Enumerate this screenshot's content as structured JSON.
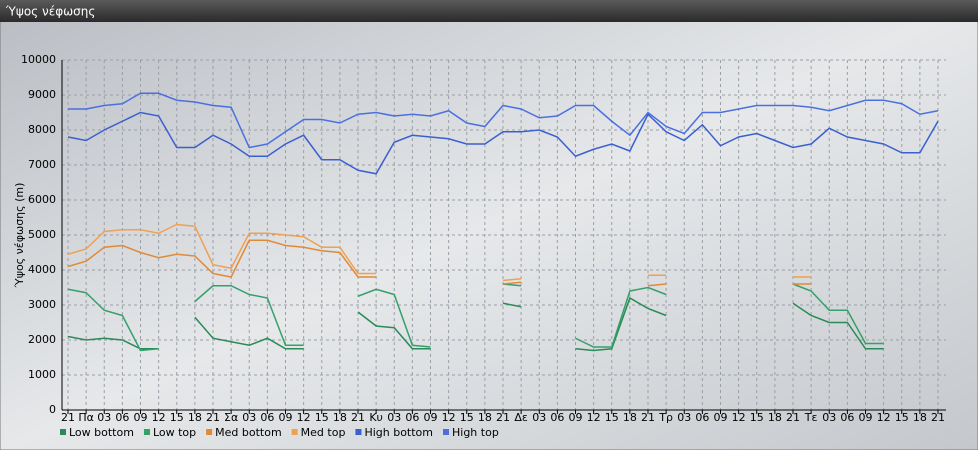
{
  "chart_data": {
    "type": "line",
    "title": "Ύψος νέφωσης",
    "y_label": "Ύψος νέφωσης (m)",
    "categories": [
      "21",
      "Πα",
      "03",
      "06",
      "09",
      "12",
      "15",
      "18",
      "21",
      "Σα",
      "03",
      "06",
      "09",
      "12",
      "15",
      "18",
      "21",
      "Κυ",
      "03",
      "06",
      "09",
      "12",
      "15",
      "18",
      "21",
      "Δε",
      "03",
      "06",
      "09",
      "12",
      "15",
      "18",
      "21",
      "Τρ",
      "03",
      "06",
      "09",
      "12",
      "15",
      "18",
      "21",
      "Τε",
      "03",
      "06",
      "09",
      "12",
      "15",
      "18",
      "21"
    ],
    "ylim": [
      0,
      10000
    ],
    "yticks": [
      0,
      1000,
      2000,
      3000,
      4000,
      5000,
      6000,
      7000,
      8000,
      9000,
      10000
    ],
    "grid": true,
    "legend": "bottom-left",
    "series": [
      {
        "name": "Low bottom",
        "color": "#2a8a58",
        "values": [
          2100,
          2000,
          2050,
          2000,
          1750,
          1750,
          null,
          2650,
          2050,
          1950,
          1850,
          2050,
          1750,
          1750,
          null,
          null,
          2800,
          2400,
          2350,
          1750,
          1750,
          null,
          null,
          null,
          3050,
          2950,
          null,
          null,
          1750,
          1700,
          1750,
          3200,
          2900,
          2700,
          null,
          null,
          null,
          null,
          null,
          null,
          3050,
          2700,
          2500,
          2500,
          1750,
          1750,
          null,
          null,
          null
        ]
      },
      {
        "name": "Low top",
        "color": "#34a06a",
        "values": [
          3450,
          3350,
          2850,
          2700,
          1700,
          1750,
          null,
          3100,
          3550,
          3550,
          3300,
          3200,
          1850,
          1850,
          null,
          null,
          3250,
          3450,
          3300,
          1850,
          1800,
          null,
          null,
          null,
          3600,
          3550,
          null,
          null,
          2050,
          1800,
          1800,
          3400,
          3500,
          3300,
          null,
          null,
          null,
          null,
          null,
          null,
          3600,
          3400,
          2850,
          2850,
          1900,
          1900,
          null,
          null,
          null
        ]
      },
      {
        "name": "Med bottom",
        "color": "#e08a38",
        "values": [
          4100,
          4250,
          4650,
          4700,
          4500,
          4350,
          4450,
          4400,
          3900,
          3800,
          4850,
          4850,
          4700,
          4650,
          4550,
          4500,
          3800,
          3800,
          null,
          null,
          null,
          null,
          null,
          null,
          3600,
          3650,
          null,
          null,
          null,
          null,
          null,
          null,
          3550,
          3600,
          null,
          null,
          null,
          null,
          null,
          null,
          3600,
          3600,
          null,
          null,
          null,
          null,
          null,
          null,
          null
        ]
      },
      {
        "name": "Med top",
        "color": "#f0a050",
        "values": [
          4450,
          4600,
          5100,
          5150,
          5150,
          5050,
          5300,
          5250,
          4150,
          4050,
          5050,
          5050,
          5000,
          4950,
          4650,
          4650,
          3900,
          3900,
          null,
          null,
          null,
          null,
          null,
          null,
          3700,
          3750,
          null,
          null,
          null,
          null,
          null,
          null,
          3850,
          3850,
          null,
          null,
          null,
          null,
          null,
          null,
          3800,
          3800,
          null,
          null,
          null,
          null,
          null,
          null,
          null
        ]
      },
      {
        "name": "High bottom",
        "color": "#3a5fcf",
        "values": [
          7800,
          7700,
          8000,
          8250,
          8500,
          8400,
          7500,
          7500,
          7850,
          7600,
          7250,
          7250,
          7600,
          7850,
          7150,
          7150,
          6850,
          6750,
          7650,
          7850,
          7800,
          7750,
          7600,
          7600,
          7950,
          7950,
          8000,
          7800,
          7250,
          7450,
          7600,
          7400,
          8450,
          7950,
          7700,
          8150,
          7550,
          7800,
          7900,
          7700,
          7500,
          7600,
          8050,
          7800,
          7700,
          7600,
          7350,
          7350,
          8250
        ]
      },
      {
        "name": "High top",
        "color": "#4a70e0",
        "values": [
          8600,
          8600,
          8700,
          8750,
          9050,
          9050,
          8850,
          8800,
          8700,
          8650,
          7500,
          7600,
          7950,
          8300,
          8300,
          8200,
          8450,
          8500,
          8400,
          8450,
          8400,
          8550,
          8200,
          8100,
          8700,
          8600,
          8350,
          8400,
          8700,
          8700,
          8250,
          7850,
          8500,
          8100,
          7900,
          8500,
          8500,
          8600,
          8700,
          8700,
          8700,
          8650,
          8550,
          8700,
          8850,
          8850,
          8750,
          8450,
          8550
        ]
      }
    ]
  }
}
